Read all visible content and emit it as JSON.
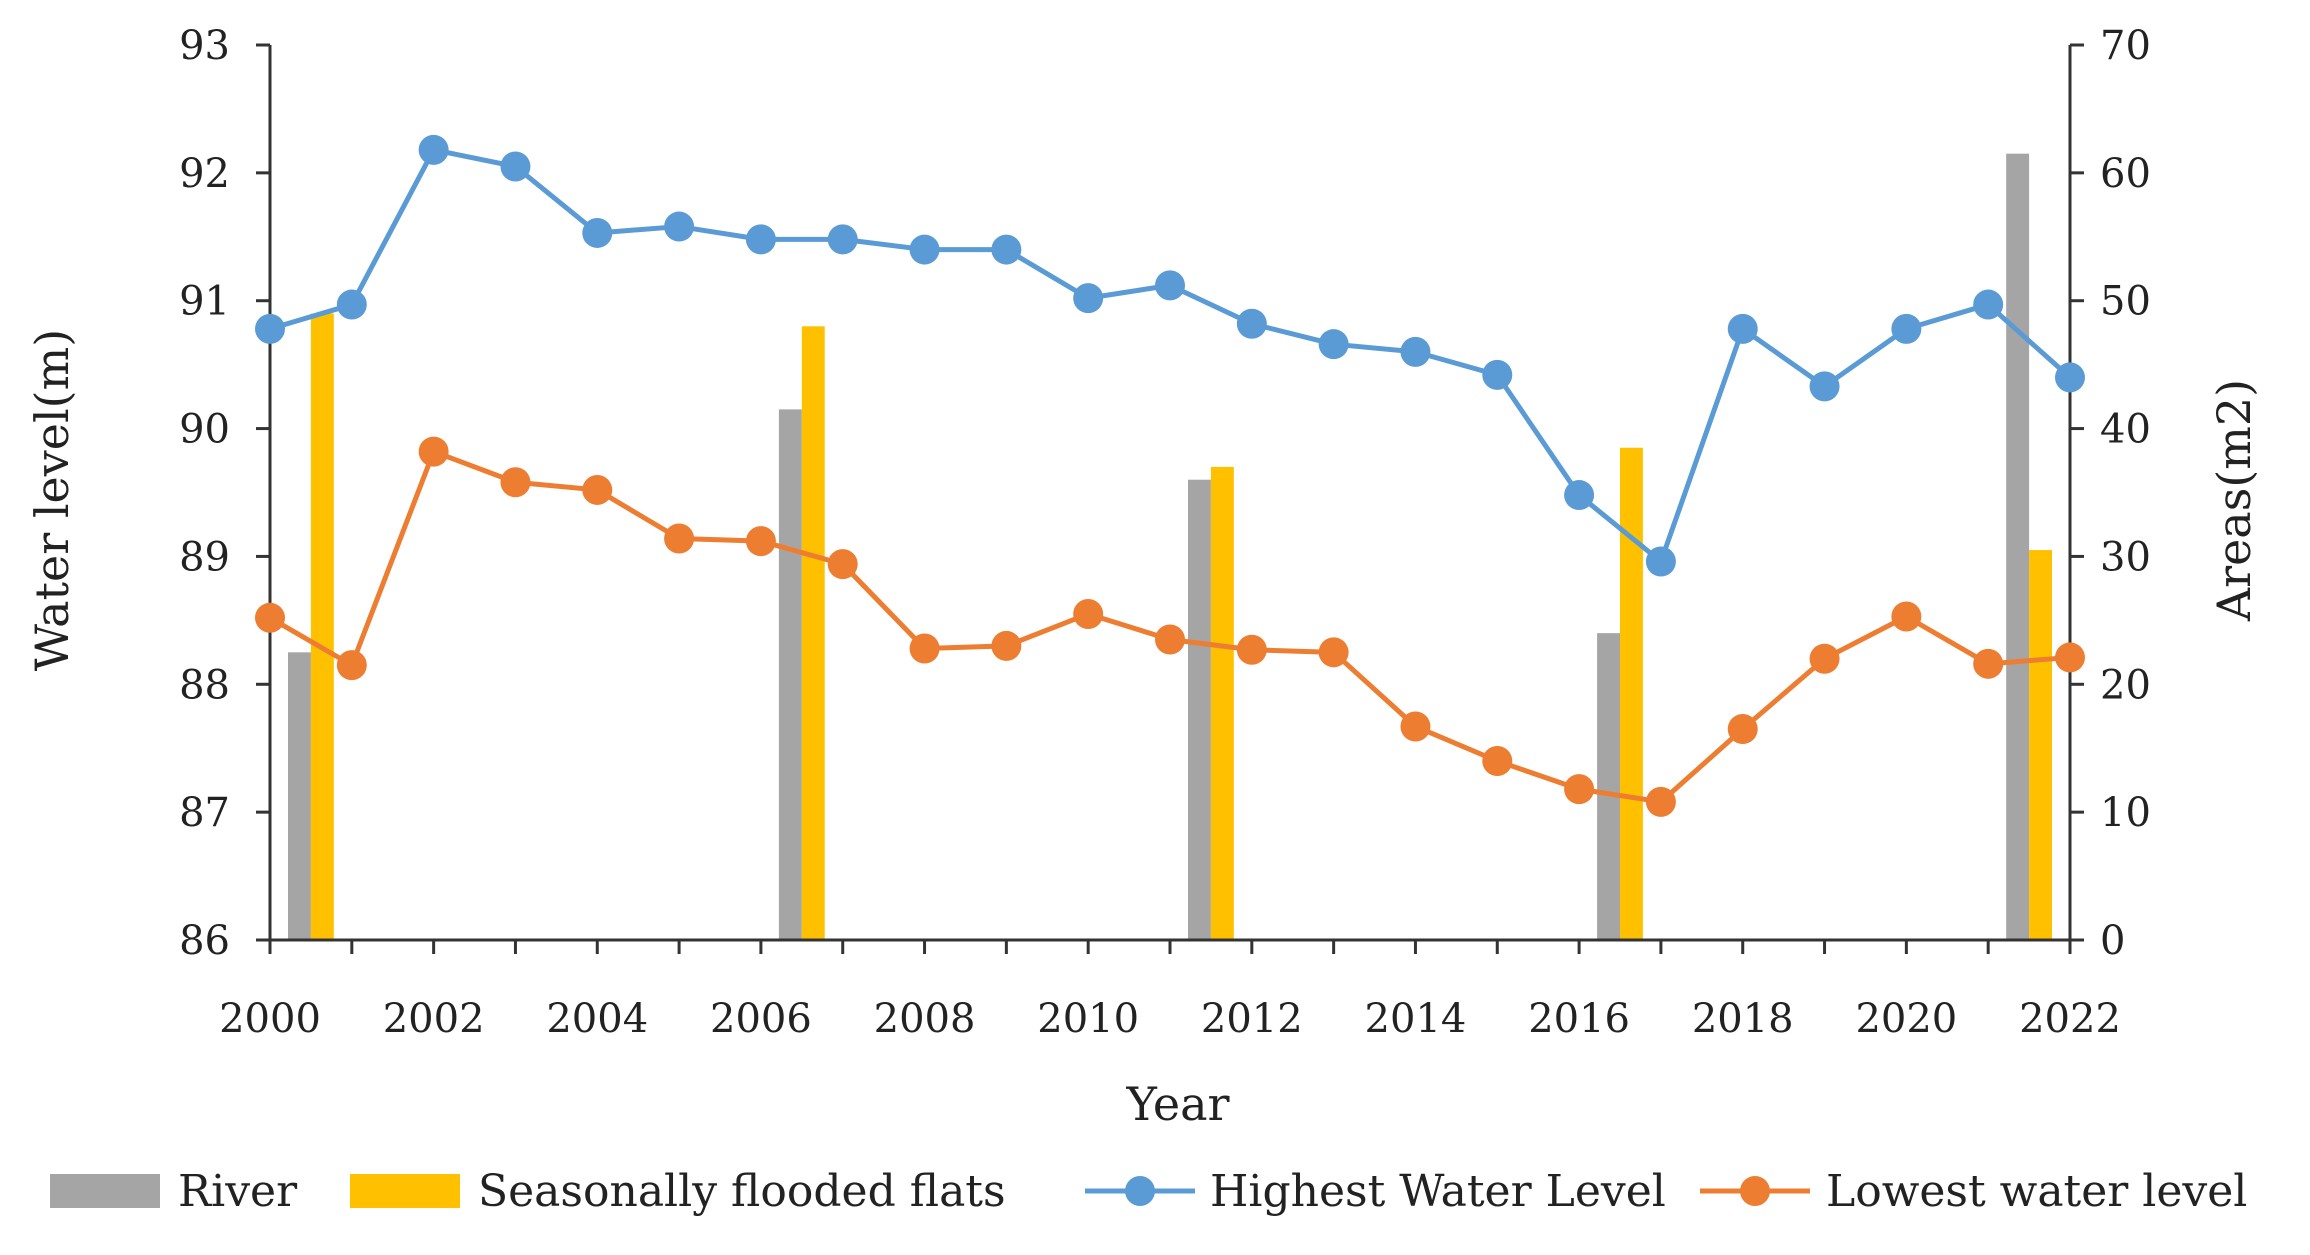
{
  "chart_data": {
    "type": "bar+line",
    "title": "",
    "xlabel": "Year",
    "ylabel_left": "Water level(m)",
    "ylabel_right": "Areas(m2)",
    "x": [
      2000,
      2001,
      2002,
      2003,
      2004,
      2005,
      2006,
      2007,
      2008,
      2009,
      2010,
      2011,
      2012,
      2013,
      2014,
      2015,
      2016,
      2017,
      2018,
      2019,
      2020,
      2021,
      2022
    ],
    "x_ticks": [
      "2000",
      "2002",
      "2004",
      "2006",
      "2008",
      "2010",
      "2012",
      "2014",
      "2016",
      "2018",
      "2020",
      "2022"
    ],
    "ylim_left": [
      86,
      93
    ],
    "y_ticks_left": [
      "86",
      "87",
      "88",
      "89",
      "90",
      "91",
      "92",
      "93"
    ],
    "ylim_right": [
      0,
      70
    ],
    "y_ticks_right": [
      "0",
      "10",
      "20",
      "30",
      "40",
      "50",
      "60",
      "70"
    ],
    "bar_categories": [
      2000,
      2006,
      2011,
      2016,
      2021
    ],
    "bar_series": [
      {
        "name": "River",
        "color": "#a5a5a5",
        "values": [
          22.5,
          41.5,
          36,
          24,
          61.5
        ]
      },
      {
        "name": "Seasonally flooded flats",
        "color": "#ffc000",
        "values": [
          49,
          48,
          37,
          38.5,
          30.5
        ]
      }
    ],
    "line_series": [
      {
        "name": "Highest Water Level",
        "color": "#5b9bd5",
        "values": [
          90.78,
          90.97,
          92.18,
          92.05,
          91.53,
          91.58,
          91.48,
          91.48,
          91.4,
          91.4,
          91.02,
          91.12,
          90.82,
          90.66,
          90.6,
          90.42,
          89.48,
          88.96,
          90.78,
          90.33,
          90.78,
          90.97,
          90.4
        ]
      },
      {
        "name": "Lowest water level",
        "color": "#ed7d31",
        "values": [
          88.52,
          88.15,
          89.82,
          89.58,
          89.52,
          89.14,
          89.12,
          88.94,
          88.28,
          88.3,
          88.55,
          88.35,
          88.27,
          88.25,
          87.67,
          87.4,
          87.18,
          87.08,
          87.65,
          88.2,
          88.53,
          88.16,
          88.21
        ]
      }
    ],
    "legend_position": "bottom",
    "grid": false
  }
}
